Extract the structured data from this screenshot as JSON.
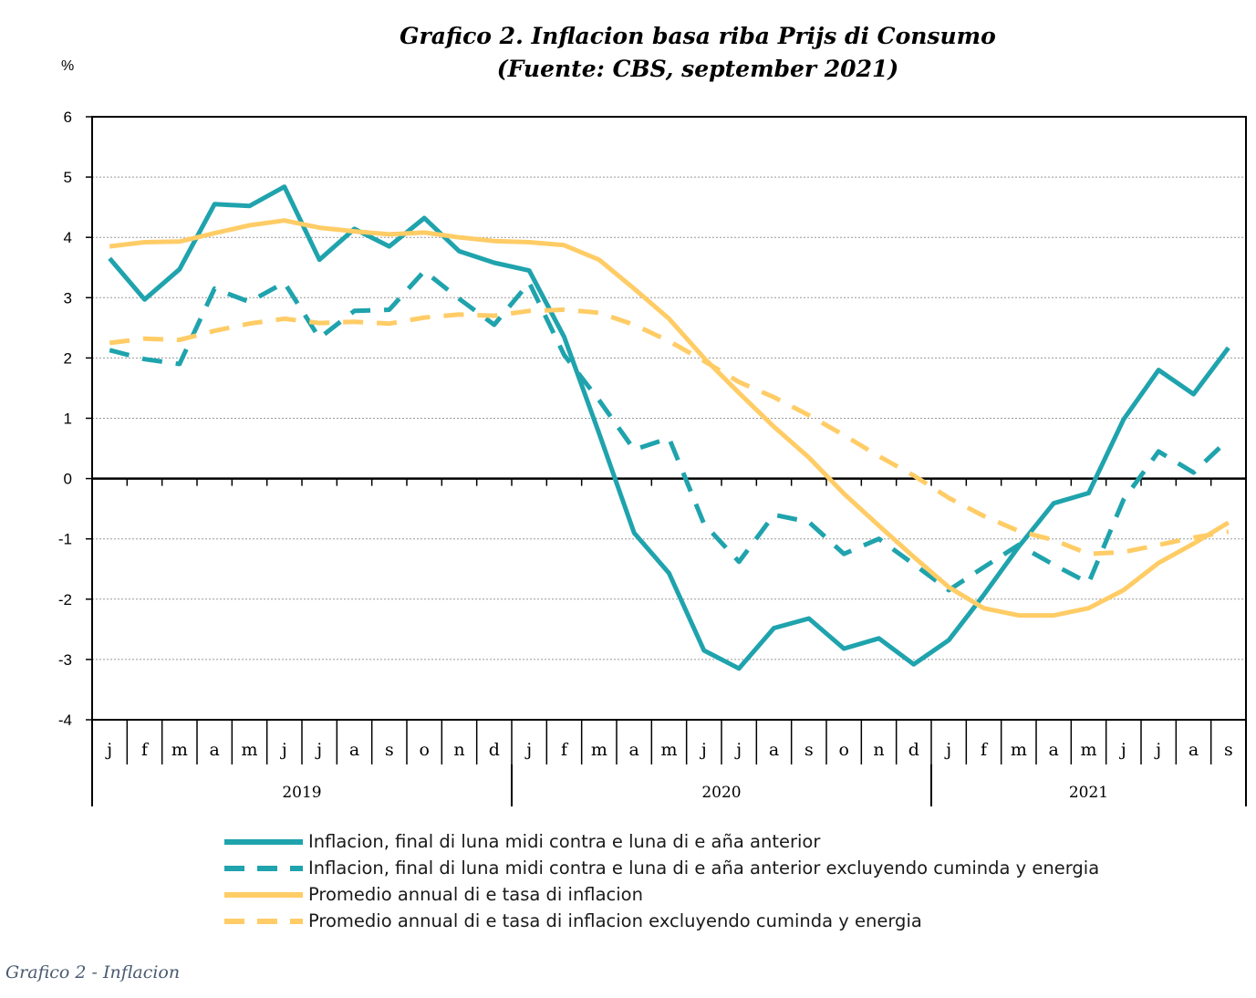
{
  "chart_data": {
    "type": "line",
    "title_lines": [
      "Grafico 2. Inflacion basa riba Prijs di Consumo",
      "(Fuente: CBS, september 2021)"
    ],
    "ylabel": "%",
    "ylim": [
      -4,
      6
    ],
    "yticks": [
      6,
      5,
      4,
      3,
      2,
      1,
      0,
      -1,
      -2,
      -3,
      -4
    ],
    "grid": "horizontal dotted",
    "legend_position": "bottom",
    "x": [
      "j",
      "f",
      "m",
      "a",
      "m",
      "j",
      "j",
      "a",
      "s",
      "o",
      "n",
      "d",
      "j",
      "f",
      "m",
      "a",
      "m",
      "j",
      "j",
      "a",
      "s",
      "o",
      "n",
      "d",
      "j",
      "f",
      "m",
      "a",
      "m",
      "j",
      "j",
      "a",
      "s"
    ],
    "year_groups": [
      {
        "label": "2019",
        "start": 0,
        "end": 12
      },
      {
        "label": "2020",
        "start": 12,
        "end": 24
      },
      {
        "label": "2021",
        "start": 24,
        "end": 33
      }
    ],
    "series": [
      {
        "name": "Inflacion, final di luna midi contra e luna di e aña anterior",
        "color": "#1fa3ad",
        "dash": "solid",
        "values": [
          3.65,
          2.97,
          3.47,
          4.55,
          4.52,
          4.84,
          3.63,
          4.14,
          3.85,
          4.32,
          3.77,
          3.58,
          3.45,
          2.35,
          0.75,
          -0.9,
          -1.57,
          -2.85,
          -3.15,
          -2.48,
          -2.32,
          -2.82,
          -2.65,
          -3.08,
          -2.68,
          -1.93,
          -1.13,
          -0.41,
          -0.24,
          0.98,
          1.8,
          1.4,
          2.17
        ]
      },
      {
        "name": "Inflacion, final di luna midi contra e luna di e aña anterior excluyendo cuminda y energia",
        "color": "#1fa3ad",
        "dash": "dashed",
        "values": [
          2.13,
          1.98,
          1.9,
          3.15,
          2.93,
          3.25,
          2.33,
          2.78,
          2.8,
          3.44,
          2.98,
          2.55,
          3.25,
          2.05,
          1.3,
          0.48,
          0.67,
          -0.75,
          -1.38,
          -0.6,
          -0.72,
          -1.25,
          -1.0,
          -1.42,
          -1.85,
          -1.47,
          -1.1,
          -1.43,
          -1.73,
          -0.35,
          0.45,
          0.1,
          0.65
        ]
      },
      {
        "name": "Promedio annual di e tasa di inflacion",
        "color": "#ffcc66",
        "dash": "solid",
        "values": [
          3.85,
          3.92,
          3.93,
          4.07,
          4.2,
          4.28,
          4.16,
          4.1,
          4.05,
          4.08,
          4.0,
          3.94,
          3.92,
          3.87,
          3.63,
          3.15,
          2.65,
          2.0,
          1.42,
          0.86,
          0.35,
          -0.25,
          -0.78,
          -1.3,
          -1.8,
          -2.15,
          -2.27,
          -2.27,
          -2.15,
          -1.85,
          -1.4,
          -1.08,
          -0.73
        ]
      },
      {
        "name": "Promedio annual di e tasa di inflacion excluyendo cuminda y energia",
        "color": "#ffcc66",
        "dash": "dashed",
        "values": [
          2.25,
          2.32,
          2.3,
          2.45,
          2.57,
          2.65,
          2.58,
          2.6,
          2.57,
          2.67,
          2.72,
          2.7,
          2.78,
          2.8,
          2.75,
          2.55,
          2.28,
          1.95,
          1.6,
          1.35,
          1.05,
          0.72,
          0.37,
          0.05,
          -0.32,
          -0.62,
          -0.87,
          -1.02,
          -1.25,
          -1.22,
          -1.1,
          -0.98,
          -0.88
        ]
      }
    ]
  },
  "caption": "Grafico 2 - Inflacion"
}
